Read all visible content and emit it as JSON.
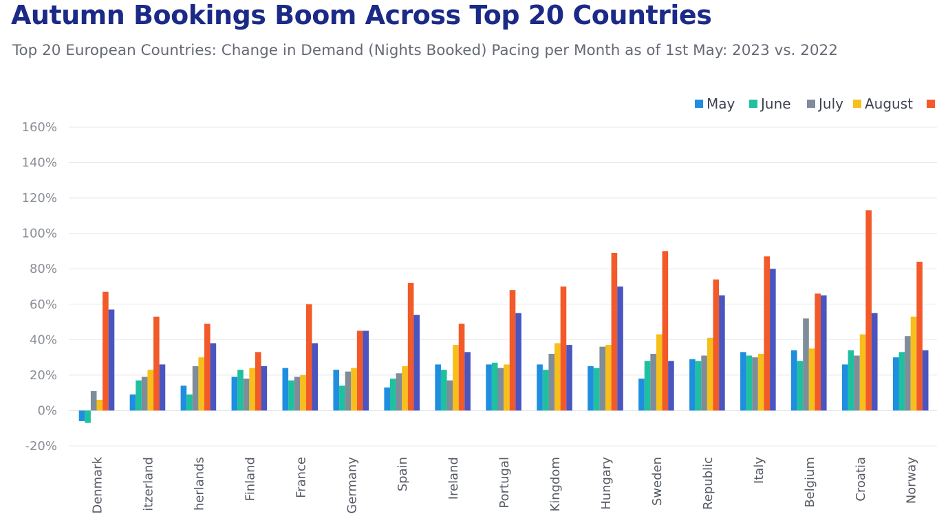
{
  "title": "Autumn Bookings Boom Across Top 20 Countries",
  "subtitle": "Top 20 European Countries: Change in Demand (Nights Booked) Pacing per Month as of 1st May: 2023 vs. 2022",
  "colors": {
    "title": "#1b2a86",
    "subtitle": "#666a74",
    "series": [
      "#1f8ee0",
      "#1fc0a0",
      "#7f8c99",
      "#f7bf1b",
      "#f25a29",
      "#4a55c0"
    ]
  },
  "chart_data": {
    "type": "bar",
    "title": "Autumn Bookings Boom Across Top 20 Countries",
    "subtitle": "Top 20 European Countries: Change in Demand (Nights Booked) Pacing per Month as of 1st May: 2023 vs. 2022",
    "ylim": [
      -20,
      160
    ],
    "yticks": [
      -20,
      0,
      20,
      40,
      60,
      80,
      100,
      120,
      140,
      160
    ],
    "ytick_labels": [
      "-20%",
      "0%",
      "20%",
      "40%",
      "60%",
      "80%",
      "100%",
      "120%",
      "140%",
      "160%"
    ],
    "grid": true,
    "legend_position": "top-right",
    "categories": [
      "Denmark",
      "itzerland",
      "herlands",
      "Finland",
      "France",
      "Germany",
      "Spain",
      "Ireland",
      "Portugal",
      "Kingdom",
      "Hungary",
      "Sweden",
      "Republic",
      "Italy",
      "Belgium",
      "Croatia",
      "Norway"
    ],
    "series": [
      {
        "name": "May",
        "values": [
          -6,
          9,
          14,
          19,
          24,
          23,
          13,
          26,
          26,
          26,
          25,
          18,
          29,
          33,
          34,
          26,
          30
        ]
      },
      {
        "name": "June",
        "values": [
          -7,
          17,
          9,
          23,
          17,
          14,
          18,
          23,
          27,
          23,
          24,
          28,
          28,
          31,
          28,
          34,
          33
        ]
      },
      {
        "name": "July",
        "values": [
          11,
          19,
          25,
          18,
          19,
          22,
          21,
          17,
          24,
          32,
          36,
          32,
          31,
          30,
          52,
          31,
          42
        ]
      },
      {
        "name": "August",
        "values": [
          6,
          23,
          30,
          24,
          20,
          24,
          25,
          37,
          26,
          38,
          37,
          43,
          41,
          32,
          35,
          43,
          53
        ]
      },
      {
        "name": "",
        "values": [
          67,
          53,
          49,
          33,
          60,
          45,
          72,
          49,
          68,
          70,
          89,
          90,
          74,
          87,
          66,
          113,
          84
        ]
      },
      {
        "name": "",
        "values": [
          57,
          26,
          38,
          25,
          38,
          45,
          54,
          33,
          55,
          37,
          70,
          28,
          65,
          80,
          65,
          55,
          34
        ]
      }
    ]
  }
}
